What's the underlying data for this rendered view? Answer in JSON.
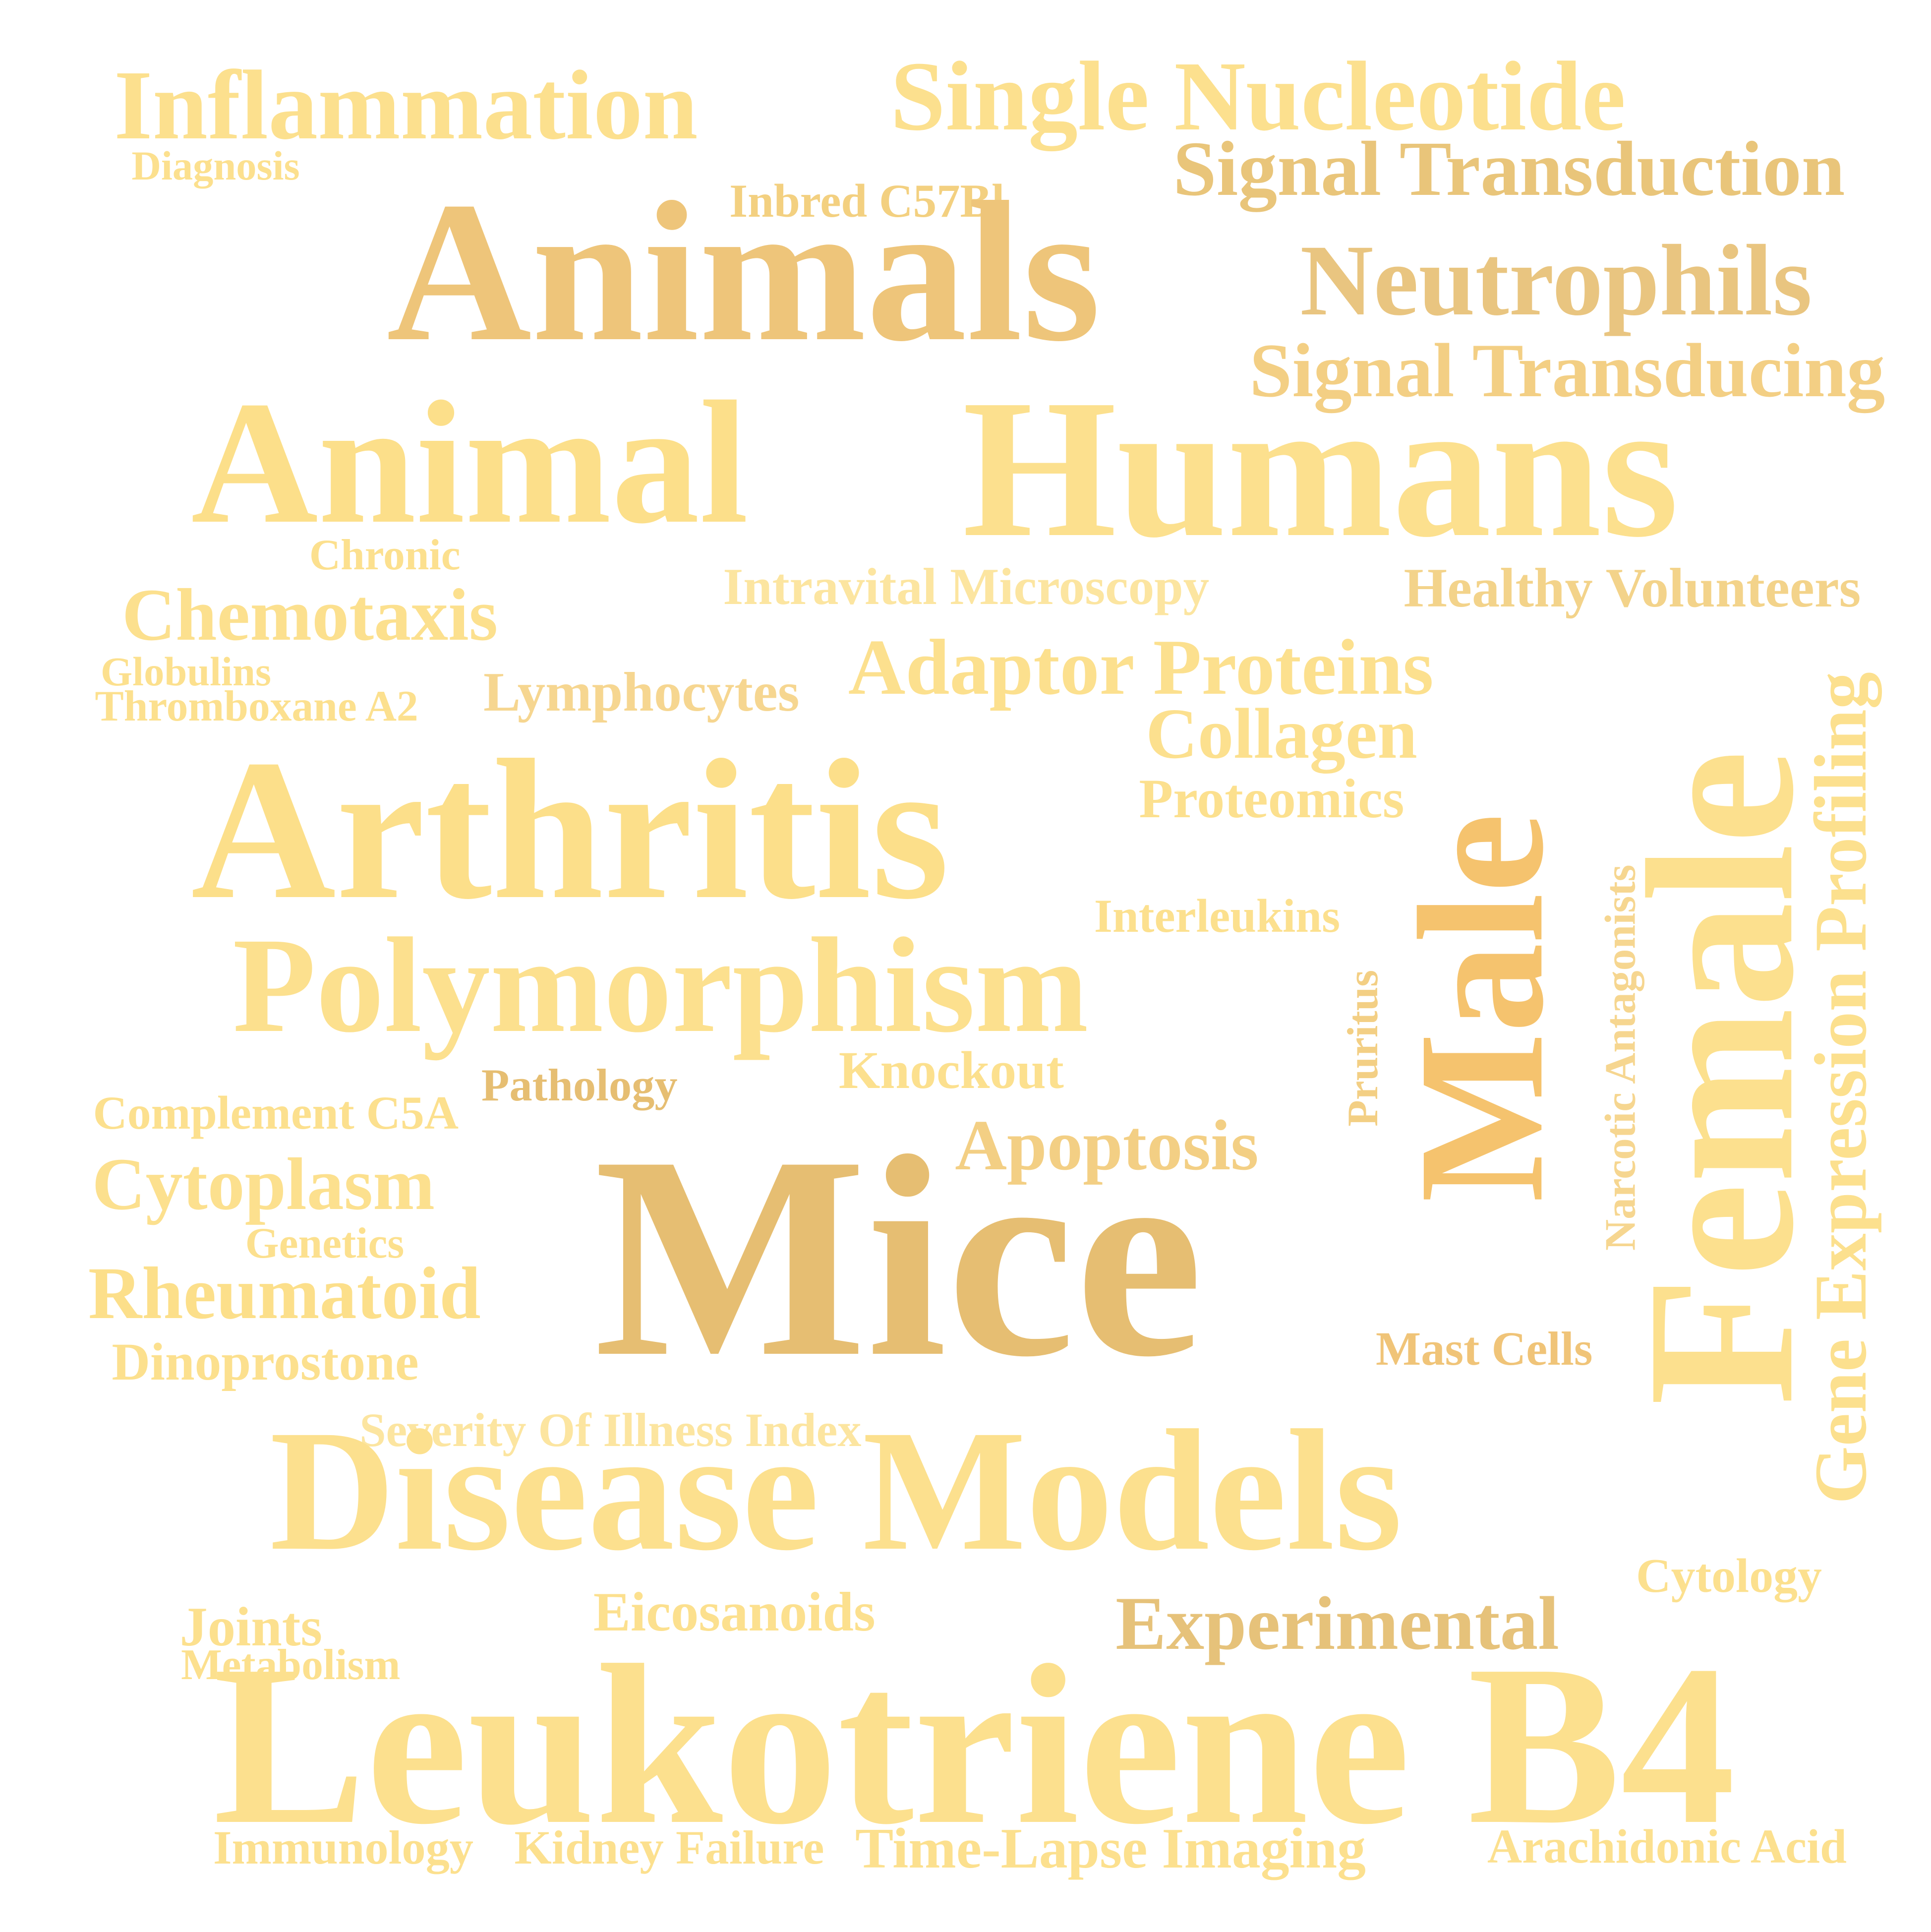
{
  "words": [
    {
      "text": "Inflammation",
      "color": "#FCE08E"
    },
    {
      "text": "Diagnosis",
      "color": "#FCE08E"
    },
    {
      "text": "Single Nucleotide",
      "color": "#FCE08E"
    },
    {
      "text": "Signal Transduction",
      "color": "#E9C57A"
    },
    {
      "text": "Inbred C57Bl",
      "color": "#F3D080"
    },
    {
      "text": "Animals",
      "color": "#EEC57A"
    },
    {
      "text": "Neutrophils",
      "color": "#E9C580"
    },
    {
      "text": "Signal Transducing",
      "color": "#F3CF84"
    },
    {
      "text": "Animal",
      "color": "#FCDF8A"
    },
    {
      "text": "Humans",
      "color": "#FCE08E"
    },
    {
      "text": "Chronic",
      "color": "#FCE08E"
    },
    {
      "text": "Intravital Microscopy",
      "color": "#FCE5A0"
    },
    {
      "text": "Healthy Volunteers",
      "color": "#F3D38A"
    },
    {
      "text": "Chemotaxis",
      "color": "#FCE08E"
    },
    {
      "text": "Globulins",
      "color": "#FCE08E"
    },
    {
      "text": "Thromboxane A2",
      "color": "#FCE08E"
    },
    {
      "text": "Lymphocytes",
      "color": "#F6D690"
    },
    {
      "text": "Adaptor Proteins",
      "color": "#FCE08E"
    },
    {
      "text": "Collagen",
      "color": "#FCE08E"
    },
    {
      "text": "Proteomics",
      "color": "#FCE08E"
    },
    {
      "text": "Arthritis",
      "color": "#FCDF8A"
    },
    {
      "text": "Interleukins",
      "color": "#FCE08E"
    },
    {
      "text": "Polymorphism",
      "color": "#FCE08E"
    },
    {
      "text": "Knockout",
      "color": "#FCE08E"
    },
    {
      "text": "Pathology",
      "color": "#E6BE72"
    },
    {
      "text": "Complement C5A",
      "color": "#FCE08E"
    },
    {
      "text": "Apoptosis",
      "color": "#F3CF84"
    },
    {
      "text": "Cytoplasm",
      "color": "#FCE08E"
    },
    {
      "text": "Genetics",
      "color": "#FCE08E"
    },
    {
      "text": "Rheumatoid",
      "color": "#FCDF8A"
    },
    {
      "text": "Dinoprostone",
      "color": "#FCE08E"
    },
    {
      "text": "Mice",
      "color": "#E6BE72"
    },
    {
      "text": "Mast Cells",
      "color": "#F0C478"
    },
    {
      "text": "Severity Of Illness Index",
      "color": "#FCE5A0"
    },
    {
      "text": "Disease Models",
      "color": "#FCE08E"
    },
    {
      "text": "Cytology",
      "color": "#FCE08E"
    },
    {
      "text": "Joints",
      "color": "#FCE08E"
    },
    {
      "text": "Metabolism",
      "color": "#FCE08E"
    },
    {
      "text": "Eicosanoids",
      "color": "#FCE08E"
    },
    {
      "text": "Experimental",
      "color": "#E6C27A"
    },
    {
      "text": "Leukotriene B4",
      "color": "#FCE08E"
    },
    {
      "text": "Immunology",
      "color": "#FCE08E"
    },
    {
      "text": "Kidney Failure",
      "color": "#FCE08E"
    },
    {
      "text": "Time-Lapse Imaging",
      "color": "#FCE08E"
    },
    {
      "text": "Arachidonic Acid",
      "color": "#FCE08E"
    },
    {
      "text": "Male",
      "color": "#F5C36E"
    },
    {
      "text": "Female",
      "color": "#FCE08E"
    },
    {
      "text": "Gene Expression Profiling",
      "color": "#FCE08E"
    },
    {
      "text": "Narcotic Antagonists",
      "color": "#F6D690"
    },
    {
      "text": "Pruritus",
      "color": "#F3CF84"
    }
  ]
}
